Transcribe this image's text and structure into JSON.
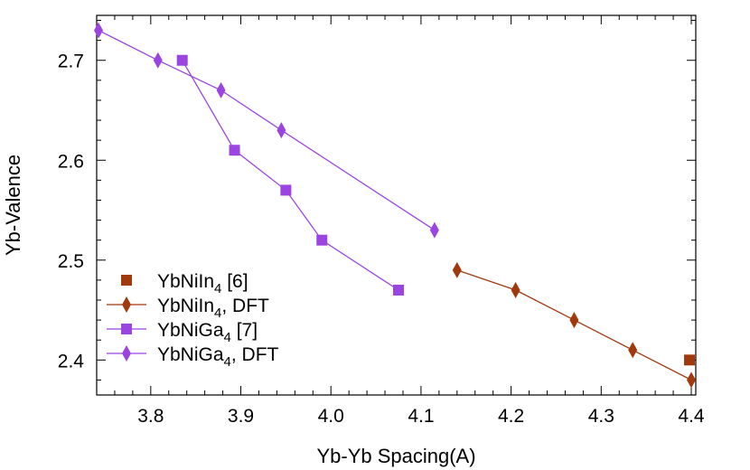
{
  "chart_data": {
    "type": "line",
    "title": "",
    "xlabel": "Yb-Yb Spacing(A)",
    "ylabel": "Yb-Valence",
    "xlim": [
      3.74,
      4.405
    ],
    "ylim": [
      2.365,
      2.745
    ],
    "xticks": [
      3.8,
      3.9,
      4.0,
      4.1,
      4.2,
      4.3,
      4.4
    ],
    "xtick_labels": [
      "3.8",
      "3.9",
      "4.0",
      "4.1",
      "4.2",
      "4.3",
      "4.4"
    ],
    "yticks": [
      2.4,
      2.5,
      2.6,
      2.7
    ],
    "ytick_labels": [
      "2.4",
      "2.5",
      "2.6",
      "2.7"
    ],
    "grid": false,
    "legend_position": "bottom-left",
    "series": [
      {
        "name": "YbNiIn4 [6]",
        "legend_base": "YbNiIn",
        "legend_sub": "4",
        "legend_suffix": " [6]",
        "color": "#a0390c",
        "marker": "square",
        "line": false,
        "x": [
          4.398
        ],
        "y": [
          2.4
        ]
      },
      {
        "name": "YbNiIn4, DFT",
        "legend_base": "YbNiIn",
        "legend_sub": "4",
        "legend_suffix": ", DFT",
        "color": "#a0390c",
        "marker": "diamond",
        "line": true,
        "x": [
          4.14,
          4.205,
          4.27,
          4.335,
          4.4
        ],
        "y": [
          2.49,
          2.47,
          2.44,
          2.41,
          2.38
        ]
      },
      {
        "name": "YbNiGa4 [7]",
        "legend_base": "YbNiGa",
        "legend_sub": "4",
        "legend_suffix": " [7]",
        "color": "#9b45e0",
        "marker": "square",
        "line": true,
        "x": [
          3.835,
          3.893,
          3.95,
          3.99,
          4.075
        ],
        "y": [
          2.7,
          2.61,
          2.57,
          2.52,
          2.47
        ]
      },
      {
        "name": "YbNiGa4, DFT",
        "legend_base": "YbNiGa",
        "legend_sub": "4",
        "legend_suffix": ", DFT",
        "color": "#9b45e0",
        "marker": "diamond",
        "line": true,
        "x": [
          3.742,
          3.808,
          3.878,
          3.945,
          4.115
        ],
        "y": [
          2.73,
          2.7,
          2.67,
          2.63,
          2.53
        ]
      }
    ]
  }
}
